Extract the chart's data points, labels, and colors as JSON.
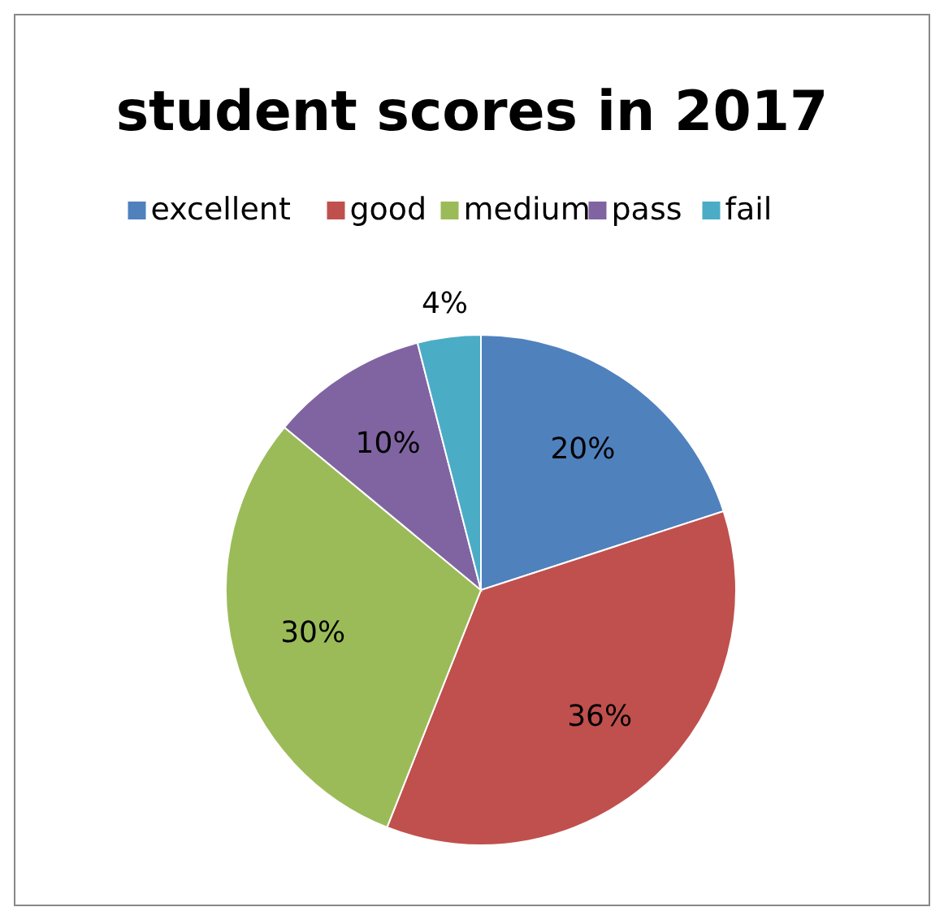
{
  "chart_data": {
    "type": "pie",
    "title": "student scores in 2017",
    "categories": [
      "excellent",
      "good",
      "medium",
      "pass",
      "fail"
    ],
    "values": [
      20,
      36,
      30,
      10,
      4
    ],
    "colors": [
      "#4f81bd",
      "#c0504d",
      "#9bbb59",
      "#8064a2",
      "#4bacc6"
    ],
    "value_labels": [
      "20%",
      "36%",
      "30%",
      "10%",
      "4%"
    ],
    "legend": "top"
  }
}
